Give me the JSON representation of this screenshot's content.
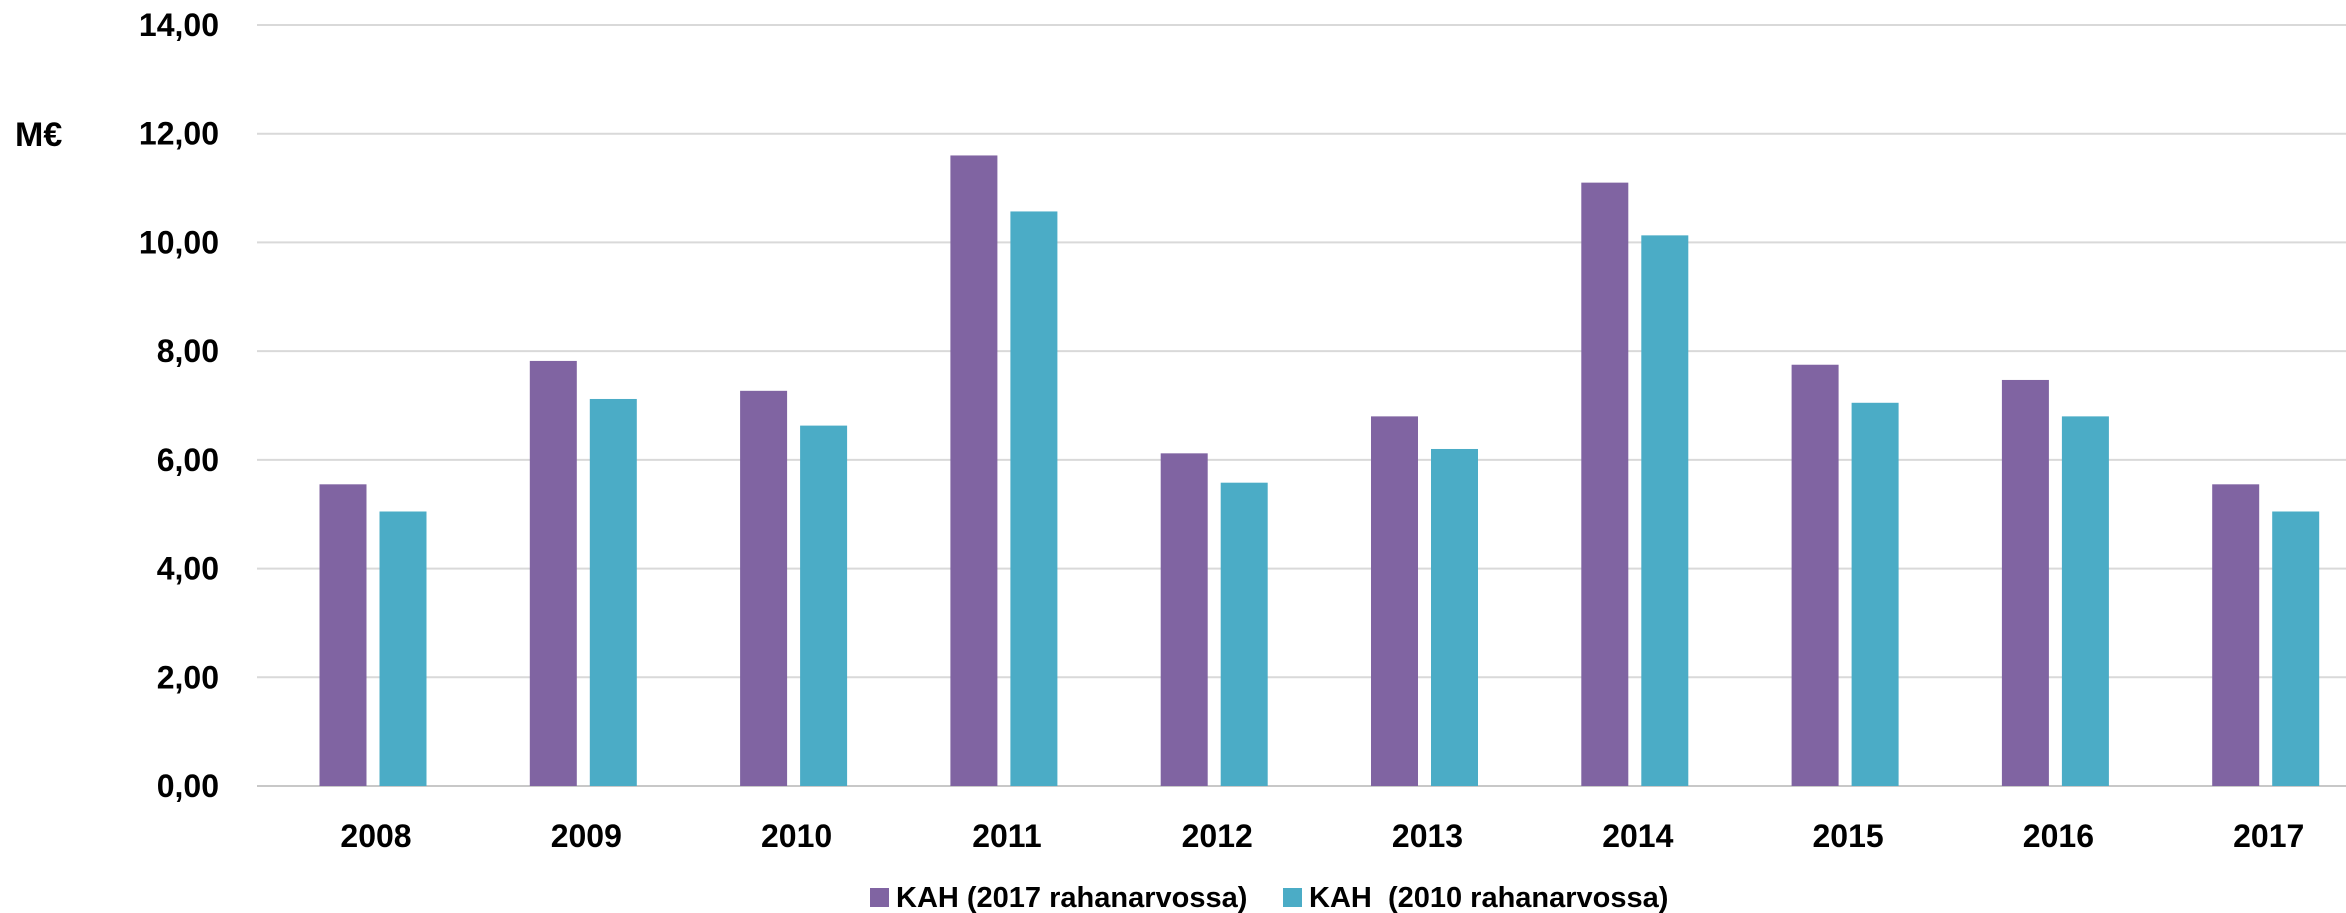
{
  "chart_data": {
    "type": "bar",
    "title": "",
    "xlabel": "",
    "ylabel": "M€",
    "ylim": [
      0,
      14
    ],
    "y_ticks": [
      "0,00",
      "2,00",
      "4,00",
      "6,00",
      "8,00",
      "10,00",
      "12,00",
      "14,00"
    ],
    "grid": true,
    "legend_position": "bottom-center",
    "categories": [
      "2008",
      "2009",
      "2010",
      "2011",
      "2012",
      "2013",
      "2014",
      "2015",
      "2016",
      "2017"
    ],
    "series": [
      {
        "name": "KAH (2017 rahanarvossa)",
        "color": "#8064a2",
        "values": [
          5.55,
          7.82,
          7.27,
          11.6,
          6.12,
          6.8,
          11.1,
          7.75,
          7.47,
          5.55
        ]
      },
      {
        "name": "KAH  (2010 rahanarvossa)",
        "color": "#4bacc6",
        "values": [
          5.05,
          7.12,
          6.63,
          10.57,
          5.58,
          6.2,
          10.13,
          7.05,
          6.8,
          5.05
        ]
      }
    ]
  }
}
